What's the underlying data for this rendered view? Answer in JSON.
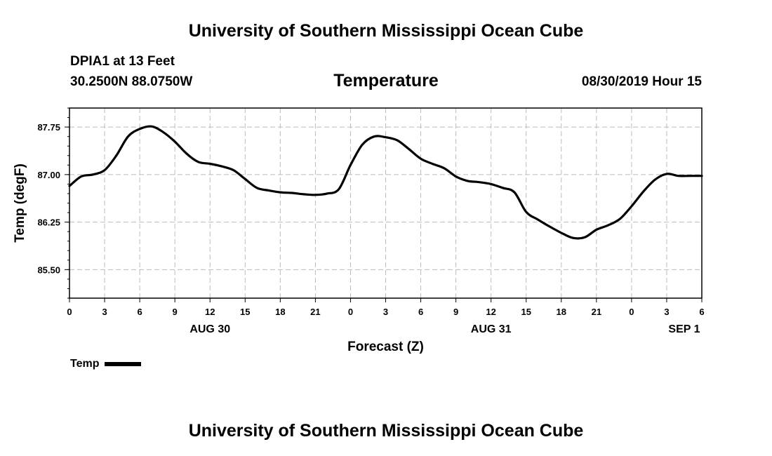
{
  "page": {
    "title": "University of Southern Mississippi Ocean Cube",
    "footer_title": "University of Southern Mississippi Ocean Cube",
    "station_name": "DPIA1 at 13 Feet",
    "station_coords": "30.2500N 88.0750W",
    "forecast_time": "08/30/2019 Hour 15"
  },
  "chart_data": {
    "type": "line",
    "title": "Temperature",
    "xlabel": "Forecast (Z)",
    "ylabel": "Temp (degF)",
    "x_unit": "hours from 08/30 00Z",
    "xlim": [
      0,
      54
    ],
    "ylim": [
      85.05,
      88.05
    ],
    "yticks": [
      85.5,
      86.25,
      87.0,
      87.75
    ],
    "ytick_labels": [
      "85.50",
      "86.25",
      "87.00",
      "87.75"
    ],
    "xticks": [
      0,
      3,
      6,
      9,
      12,
      15,
      18,
      21,
      24,
      27,
      30,
      33,
      36,
      39,
      42,
      45,
      48,
      51,
      54
    ],
    "xtick_labels": [
      "0",
      "3",
      "6",
      "9",
      "12",
      "15",
      "18",
      "21",
      "0",
      "3",
      "6",
      "9",
      "12",
      "15",
      "18",
      "21",
      "0",
      "3",
      "6"
    ],
    "date_labels": [
      {
        "x": 12,
        "label": "AUG 30"
      },
      {
        "x": 36,
        "label": "AUG 31"
      },
      {
        "x": 52.5,
        "label": "SEP 1"
      }
    ],
    "grid": true,
    "legend": "bottom-left",
    "series": [
      {
        "name": "Temp",
        "color": "#000000",
        "x": [
          0,
          1,
          2,
          3,
          4,
          5,
          6,
          7,
          8,
          9,
          10,
          11,
          12,
          13,
          14,
          15,
          16,
          17,
          18,
          19,
          20,
          21,
          22,
          23,
          24,
          25,
          26,
          27,
          28,
          29,
          30,
          31,
          32,
          33,
          34,
          35,
          36,
          37,
          38,
          39,
          40,
          41,
          42,
          43,
          44,
          45,
          46,
          47,
          48,
          49,
          50,
          51,
          52,
          53,
          54
        ],
        "values": [
          86.82,
          86.97,
          87.0,
          87.07,
          87.3,
          87.6,
          87.72,
          87.76,
          87.67,
          87.52,
          87.33,
          87.2,
          87.17,
          87.13,
          87.07,
          86.93,
          86.79,
          86.75,
          86.72,
          86.71,
          86.69,
          86.68,
          86.7,
          86.77,
          87.15,
          87.47,
          87.6,
          87.59,
          87.54,
          87.4,
          87.25,
          87.17,
          87.1,
          86.97,
          86.9,
          86.88,
          86.85,
          86.79,
          86.72,
          86.41,
          86.29,
          86.18,
          86.08,
          86.0,
          86.01,
          86.13,
          86.2,
          86.3,
          86.5,
          86.73,
          86.92,
          87.01,
          86.98,
          86.98,
          86.98
        ]
      }
    ]
  }
}
